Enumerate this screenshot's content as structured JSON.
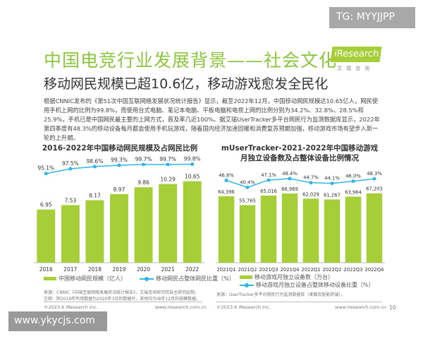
{
  "header": {
    "title": "中国电竞行业发展背景——社会文化",
    "subtitle": "移动网民规模已超10.6亿，移动游戏愈发全民化",
    "logo": "iResearch",
    "logo_sub": "艾瑞咨询"
  },
  "body_text": "根据CNNIC发布的《第51次中国互联网络发展状况统计报告》显示，截至2022年12月，中国移动网民规模达10.65亿人，网民使用手机上网的比例为99.8%，而使用台式电脑、笔记本电脑、平板电脑和电视上网的比例分别为34.2%、32.8%、28.5%和25.9%，手机已是中国网民最主要的上网方式，普及率几近100%。据艾瑞UserTracker多平台网民行为监测数据库显示，2022年第四季度有48.3%的移动设备每月都会使用手机玩游戏，随着国内经济加速回暖和消费复苏预期加强，移动游戏市场有望步入新一轮的上升期。",
  "chart_data": [
    {
      "type": "bar+line",
      "title": "2016-2022年中国移动网民规模及占网民比例",
      "categories": [
        "2016",
        "2017",
        "2018",
        "2019",
        "2020",
        "2021",
        "2022"
      ],
      "series": [
        {
          "name": "中国移动网民规模（亿人）",
          "type": "bar",
          "values": [
            6.95,
            7.53,
            8.17,
            8.97,
            9.86,
            10.29,
            10.65
          ],
          "labels": [
            "6.95",
            "7.53",
            "8.17",
            "8.97",
            "9.86",
            "10.29",
            "10.65"
          ]
        },
        {
          "name": "移动网民占整体网民比重（%）",
          "type": "line",
          "values": [
            95.1,
            97.5,
            98.6,
            99.3,
            99.7,
            99.7,
            99.8
          ],
          "labels": [
            "95.1%",
            "97.5%",
            "98.6%",
            "99.3%",
            "99.7%",
            "99.7%",
            "99.8%"
          ]
        }
      ],
      "legend": "bottom",
      "grid": false,
      "source": "来源：CNNIC《中国互联网络发展状况统计报告》，艾瑞咨询研究院自主研究绘制。",
      "note": "注释：除2019年所用数据为2020年3月的数据外，其他均为当年12月的规模数据。"
    },
    {
      "type": "bar+line",
      "title": "mUserTracker-2021-2022年中国移动游戏月独立设备数及占整体设备比例情况",
      "title_lines": [
        "mUserTracker-2021-2022年中国移动游戏",
        "月独立设备数及占整体设备比例情况"
      ],
      "categories": [
        "2021Q1",
        "2021Q2",
        "2021Q3",
        "2021Q4",
        "2022Q1",
        "2022Q2",
        "2022Q3",
        "2022Q4"
      ],
      "series": [
        {
          "name": "移动游戏月独立设备数（万台）",
          "type": "bar",
          "values": [
            64396,
            55765,
            65016,
            66969,
            62029,
            61267,
            63964,
            67203
          ],
          "labels": [
            "64,396",
            "55,765",
            "65,016",
            "66,969",
            "62,029",
            "61,267",
            "63,964",
            "67,203"
          ]
        },
        {
          "name": "移动游戏月独立设备占整体移动设备比重（%）",
          "type": "line",
          "values": [
            46.8,
            40.4,
            47.1,
            48.4,
            44.7,
            44.1,
            46.0,
            48.3
          ],
          "labels": [
            "46.8%",
            "40.4%",
            "47.1%",
            "48.4%",
            "44.7%",
            "44.1%",
            "46.0%",
            "48.3%"
          ]
        }
      ],
      "legend": "bottom",
      "grid": false,
      "source": "来源：UserTracker多平台网民行为监测数据库（桌面及智能终端）。"
    }
  ],
  "footer": {
    "copyright": "©2023.6 iResearch Inc.",
    "url": "www.iresearch.com.cn",
    "page": "10"
  },
  "overlays": {
    "tg": "TG: MYYJJPP",
    "watermark": "www.ykycjs.com"
  },
  "colors": {
    "bar": "#a6ce39",
    "line": "#2fb5e8",
    "title": "#8cc63f"
  }
}
